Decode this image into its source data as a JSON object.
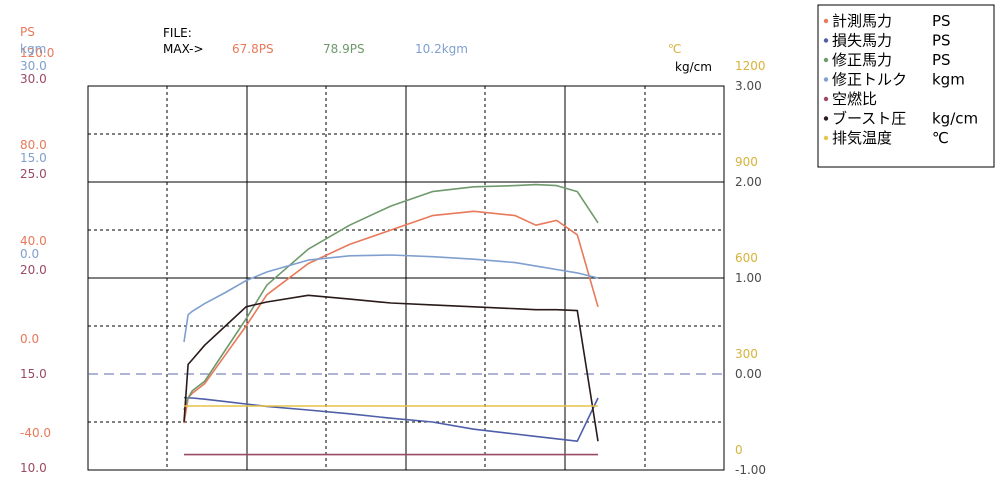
{
  "header": {
    "ps_unit": "PS",
    "kgm_unit": "kgm",
    "file_label": "FILE:",
    "max_label": "MAX->",
    "max_measured": "67.8PS",
    "max_corrected": "78.9PS",
    "max_torque": "10.2kgm",
    "temp_unit": "℃",
    "boost_unit": "kg/cm"
  },
  "colors": {
    "measured": "#e8795a",
    "loss": "#4f5ea8",
    "corrected": "#6f9a6c",
    "torque": "#7f9fcf",
    "afr": "#9a4a62",
    "boost": "#2a1a1a",
    "exhaust": "#e6c34a",
    "axis_ps": "#e8795a",
    "axis_kgm": "#7f9fcf",
    "axis_boost": "#4a4a4a",
    "axis_temp": "#d7b23c",
    "axis_afr": "#9a4a62"
  },
  "chart_data": {
    "type": "line",
    "x": [
      0,
      0.01,
      0.02,
      0.05,
      0.1,
      0.15,
      0.2,
      0.3,
      0.4,
      0.5,
      0.6,
      0.7,
      0.8,
      0.85,
      0.9,
      0.95,
      1.0
    ],
    "series": [
      {
        "name": "計測馬力",
        "unit": "PS",
        "values": [
          -20.5,
          -10,
          -8,
          -4,
          8,
          20,
          33,
          46,
          54,
          60,
          66,
          67.8,
          66,
          62,
          64,
          58,
          28
        ]
      },
      {
        "name": "損失馬力",
        "unit": "PS",
        "values": [
          -9.8,
          -10,
          -10,
          -10.5,
          -11.5,
          -12.5,
          -13.5,
          -15,
          -16.6,
          -18.4,
          -20,
          -23,
          -25,
          -26,
          -27,
          -28,
          -10
        ]
      },
      {
        "name": "修正馬力",
        "unit": "PS",
        "values": [
          -15,
          -10,
          -7,
          -3,
          10,
          23,
          37,
          52,
          62,
          70,
          76,
          78,
          78.5,
          78.9,
          78.5,
          76,
          63
        ]
      },
      {
        "name": "修正トルク",
        "unit": "kgm",
        "values": [
          0,
          3.2,
          3.6,
          4.5,
          5.8,
          7.2,
          8.2,
          9.6,
          10.1,
          10.2,
          10.0,
          9.7,
          9.3,
          8.9,
          8.5,
          8.1,
          7.5
        ]
      },
      {
        "name": "空燃比",
        "unit": "",
        "values": [
          10.8,
          10.8,
          10.8,
          10.8,
          10.8,
          10.8,
          10.8,
          10.8,
          10.8,
          10.8,
          10.8,
          10.8,
          10.8,
          10.8,
          10.8,
          10.8,
          10.8
        ]
      },
      {
        "name": "ブースト圧",
        "unit": "kg/cm",
        "values": [
          -0.5,
          0.1,
          0.15,
          0.3,
          0.5,
          0.7,
          0.75,
          0.82,
          0.78,
          0.74,
          0.72,
          0.7,
          0.68,
          0.67,
          0.67,
          0.66,
          -0.7
        ]
      },
      {
        "name": "排気温度",
        "unit": "℃",
        "values": [
          200,
          200,
          200,
          200,
          200,
          200,
          200,
          200,
          200,
          200,
          200,
          200,
          200,
          200,
          200,
          200,
          200
        ]
      }
    ],
    "axes": [
      {
        "label": "PS",
        "ticks": [
          "120.0",
          "80.0",
          "40.0",
          "0.0",
          "-40.0"
        ],
        "range": [
          -40,
          120
        ]
      },
      {
        "label": "kgm",
        "ticks": [
          "30.0",
          "15.0",
          "0.0",
          "-15.0"
        ],
        "range": [
          -15,
          30
        ]
      },
      {
        "label": "",
        "ticks": [
          "30.0",
          "25.0",
          "20.0",
          "15.0",
          "10.0"
        ],
        "range": [
          10,
          30
        ]
      },
      {
        "label": "kg/cm",
        "ticks": [
          "3.00",
          "2.00",
          "1.00",
          "0.00",
          "-1.00"
        ],
        "range": [
          -1,
          3
        ]
      },
      {
        "label": "℃",
        "ticks": [
          "1200",
          "900",
          "600",
          "300",
          "0"
        ],
        "range": [
          0,
          1200
        ]
      }
    ],
    "grid": true,
    "legend_position": "top-right",
    "legend": [
      {
        "label": "計測馬力",
        "unit": "PS"
      },
      {
        "label": "損失馬力",
        "unit": "PS"
      },
      {
        "label": "修正馬力",
        "unit": "PS"
      },
      {
        "label": "修正トルク",
        "unit": "kgm"
      },
      {
        "label": "空燃比",
        "unit": ""
      },
      {
        "label": "ブースト圧",
        "unit": "kg/cm"
      },
      {
        "label": "排気温度",
        "unit": "℃"
      }
    ]
  }
}
